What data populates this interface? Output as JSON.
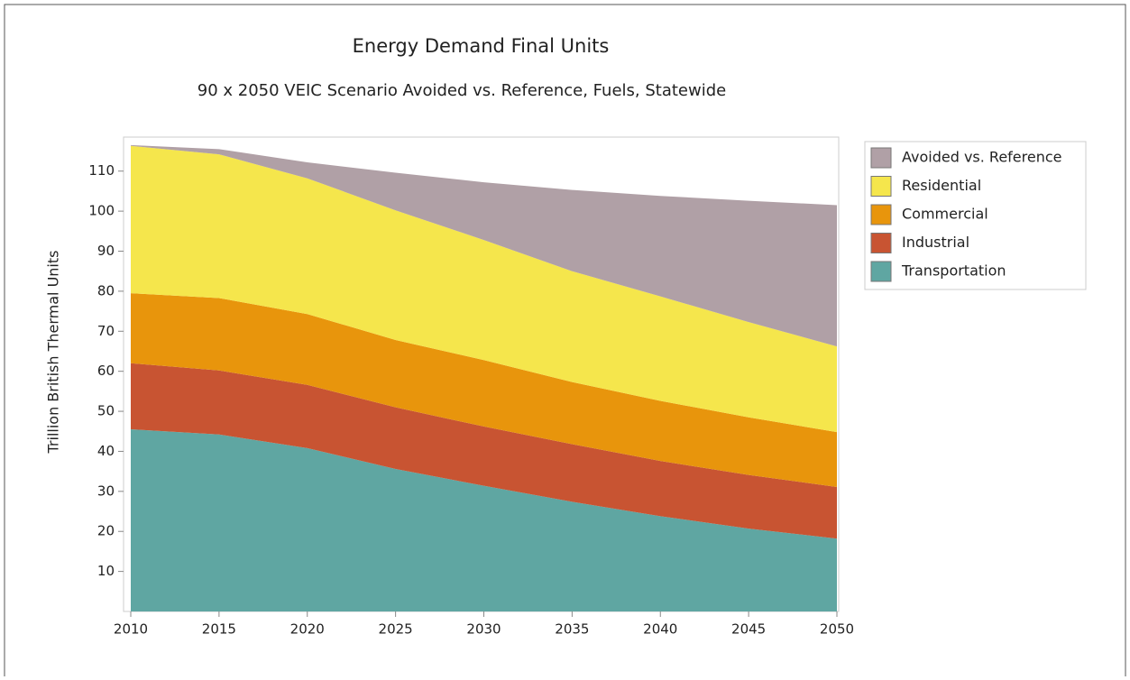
{
  "chart_data": {
    "type": "stacked_area",
    "title": "Energy Demand Final Units",
    "subtitle": "90 x 2050 VEIC Scenario Avoided vs. Reference, Fuels, Statewide",
    "y_label": "Trillion British Thermal Units",
    "x": [
      2010,
      2015,
      2020,
      2025,
      2030,
      2035,
      2040,
      2045,
      2050
    ],
    "series": [
      {
        "name": "Transportation",
        "color": "#5fa6a2",
        "values": [
          45.5,
          44.2,
          40.8,
          35.6,
          31.4,
          27.4,
          23.8,
          20.7,
          18.2
        ]
      },
      {
        "name": "Industrial",
        "color": "#c85432",
        "values": [
          16.5,
          16.0,
          15.8,
          15.4,
          14.8,
          14.4,
          13.8,
          13.4,
          12.9
        ]
      },
      {
        "name": "Commercial",
        "color": "#e8950c",
        "values": [
          17.5,
          18.1,
          17.7,
          16.8,
          16.6,
          15.5,
          15.0,
          14.4,
          13.7
        ]
      },
      {
        "name": "Residential",
        "color": "#f5e64c",
        "values": [
          36.8,
          35.9,
          33.9,
          32.4,
          30.0,
          27.7,
          26.1,
          23.8,
          21.4
        ]
      },
      {
        "name": "Avoided vs. Reference",
        "color": "#b0a0a6",
        "values": [
          0.2,
          1.3,
          4.0,
          9.4,
          14.4,
          20.3,
          25.1,
          30.3,
          35.3
        ]
      }
    ],
    "xlim": [
      2010,
      2050
    ],
    "xticks": [
      2010,
      2015,
      2020,
      2025,
      2030,
      2035,
      2040,
      2045,
      2050
    ],
    "ylim": [
      0,
      118.5
    ],
    "yticks": [
      10,
      20,
      30,
      40,
      50,
      60,
      70,
      80,
      90,
      100,
      110
    ],
    "legend": "right"
  }
}
